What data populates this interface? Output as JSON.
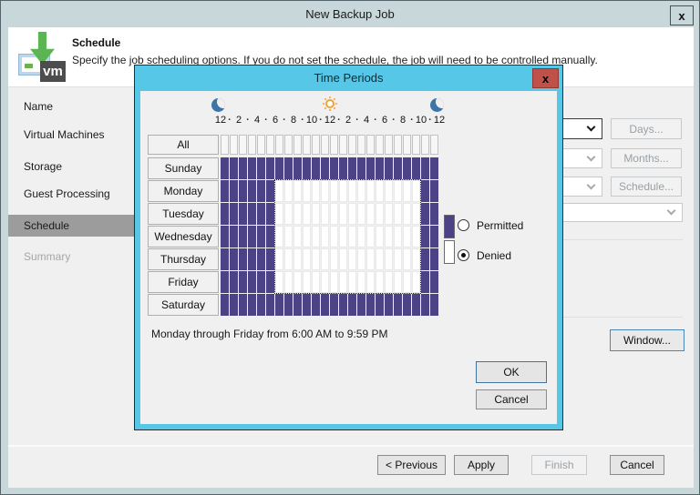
{
  "window": {
    "title": "New Backup Job",
    "close_label": "x",
    "header": {
      "title": "Schedule",
      "description": "Specify the job scheduling options. If you do not set the schedule, the job will need to be controlled manually.",
      "logo_text": "vm"
    },
    "sidebar": {
      "items": [
        {
          "label": "Name",
          "state": "normal"
        },
        {
          "label": "Virtual Machines",
          "state": "normal"
        },
        {
          "label": "Storage",
          "state": "normal"
        },
        {
          "label": "Guest Processing",
          "state": "normal"
        },
        {
          "label": "Schedule",
          "state": "selected"
        },
        {
          "label": "Summary",
          "state": "disabled"
        }
      ]
    },
    "schedule_panel": {
      "daily_combo_value": "",
      "monthly_combo_value": "",
      "periodically_combo_value": "",
      "after_job_combo_value": "",
      "days_button": "Days...",
      "months_button": "Months...",
      "schedule_button": "Schedule...",
      "window_button": "Window..."
    },
    "footer": {
      "previous_button": "< Previous",
      "apply_button": "Apply",
      "finish_button": "Finish",
      "cancel_button": "Cancel",
      "finish_enabled": false
    }
  },
  "dialog": {
    "title": "Time Periods",
    "close_label": "x",
    "icons": {
      "left": "moon-icon",
      "center": "sun-icon",
      "right": "moon-icon"
    },
    "time_scale": {
      "labels": [
        "12",
        "2",
        "4",
        "6",
        "8",
        "10",
        "12",
        "2",
        "4",
        "6",
        "8",
        "10",
        "12"
      ],
      "separator": "·"
    },
    "grid": {
      "legend_key": {
        "P": "permitted",
        "D": "denied",
        "E": "empty"
      },
      "rows": [
        {
          "label": "All",
          "pattern": "EEEEEEEEEEEEEEEEEEEEEEEE"
        },
        {
          "label": "Sunday",
          "pattern": "PPPPPPPPPPPPPPPPPPPPPPPP"
        },
        {
          "label": "Monday",
          "pattern": "PPPPPPDDDDDDDDDDDDDDDDPP"
        },
        {
          "label": "Tuesday",
          "pattern": "PPPPPPDDDDDDDDDDDDDDDDPP"
        },
        {
          "label": "Wednesday",
          "pattern": "PPPPPPDDDDDDDDDDDDDDDDPP"
        },
        {
          "label": "Thursday",
          "pattern": "PPPPPPDDDDDDDDDDDDDDDDPP"
        },
        {
          "label": "Friday",
          "pattern": "PPPPPPDDDDDDDDDDDDDDDDPP"
        },
        {
          "label": "Saturday",
          "pattern": "PPPPPPPPPPPPPPPPPPPPPPPP"
        }
      ]
    },
    "legend": {
      "permitted": {
        "label": "Permitted",
        "selected": false
      },
      "denied": {
        "label": "Denied",
        "selected": true
      }
    },
    "summary": "Monday through Friday from 6:00 AM to 9:59 PM",
    "ok_button": "OK",
    "cancel_button": "Cancel",
    "colors": {
      "permitted": "#4c4387",
      "denied": "#ffffff",
      "dialog_frame": "#57c7e8",
      "close_button": "#c0504a",
      "moon": "#3d76a6",
      "sun": "#f0a335"
    }
  }
}
